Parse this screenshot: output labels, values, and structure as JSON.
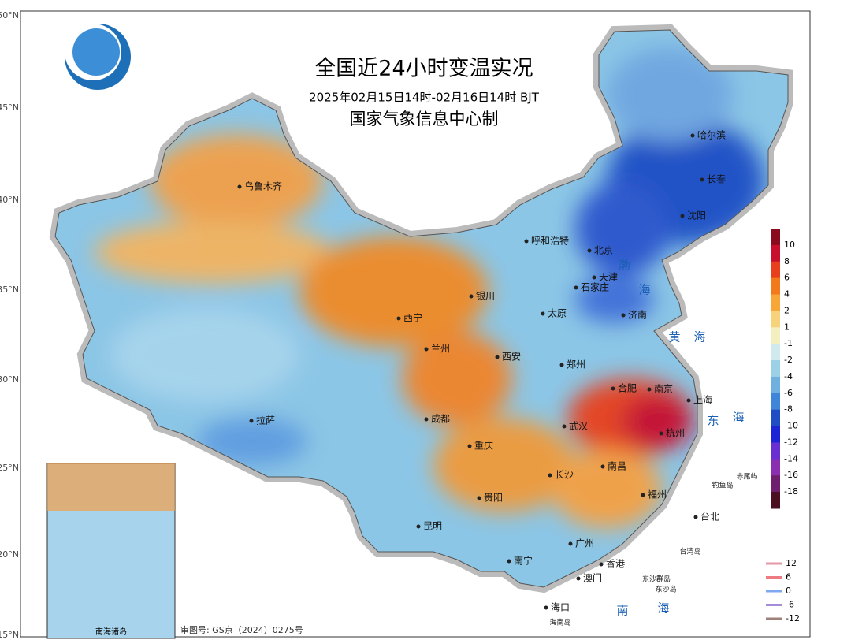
{
  "header": {
    "title": "全国近24小时变温实况",
    "subtitle": "2025年02月15日14时-02月16日14时 BJT",
    "issuer": "国家气象信息中心制"
  },
  "latitudes": [
    "50°N",
    "45°N",
    "40°N",
    "35°N",
    "30°N",
    "25°N",
    "20°N",
    "15°N"
  ],
  "cities": [
    "乌鲁木齐",
    "哈尔滨",
    "长春",
    "沈阳",
    "呼和浩特",
    "北京",
    "天津",
    "石家庄",
    "银川",
    "太原",
    "济南",
    "西宁",
    "兰州",
    "西安",
    "郑州",
    "合肥",
    "南京",
    "上海",
    "拉萨",
    "成都",
    "武汉",
    "杭州",
    "重庆",
    "南昌",
    "长沙",
    "贵阳",
    "福州",
    "台北",
    "昆明",
    "广州",
    "南宁",
    "香港",
    "澳门",
    "海口"
  ],
  "islands": [
    "台湾岛",
    "钓鱼岛",
    "赤尾屿",
    "东沙群岛",
    "东沙岛",
    "海南岛"
  ],
  "seas": [
    "渤",
    "海",
    "黄",
    "海",
    "东",
    "海",
    "南",
    "海"
  ],
  "inset": {
    "title": "南海诸岛"
  },
  "colorbar": {
    "labels": [
      10,
      8,
      6,
      4,
      2,
      1,
      -1,
      -2,
      -4,
      -6,
      -8,
      -10,
      -12,
      -14,
      -16,
      -18
    ],
    "colors": [
      "#8b0b1e",
      "#c8102e",
      "#e8401c",
      "#f27a1a",
      "#f7a738",
      "#f6d27a",
      "#f3efc0",
      "#cfe9ee",
      "#9bd0e6",
      "#6fb0df",
      "#3f86d8",
      "#1f4ec4",
      "#1c24d6",
      "#6a2fd0",
      "#8a2fb0",
      "#6e1f6e",
      "#4a0f20"
    ]
  },
  "contours": {
    "labels": [
      12,
      6,
      0,
      -6,
      -12
    ],
    "colors": [
      "#e39aa5",
      "#ef7b82",
      "#7fa8ee",
      "#a58bd8",
      "#a0807a"
    ]
  },
  "footer": "审图号: GS京（2024）0275号"
}
